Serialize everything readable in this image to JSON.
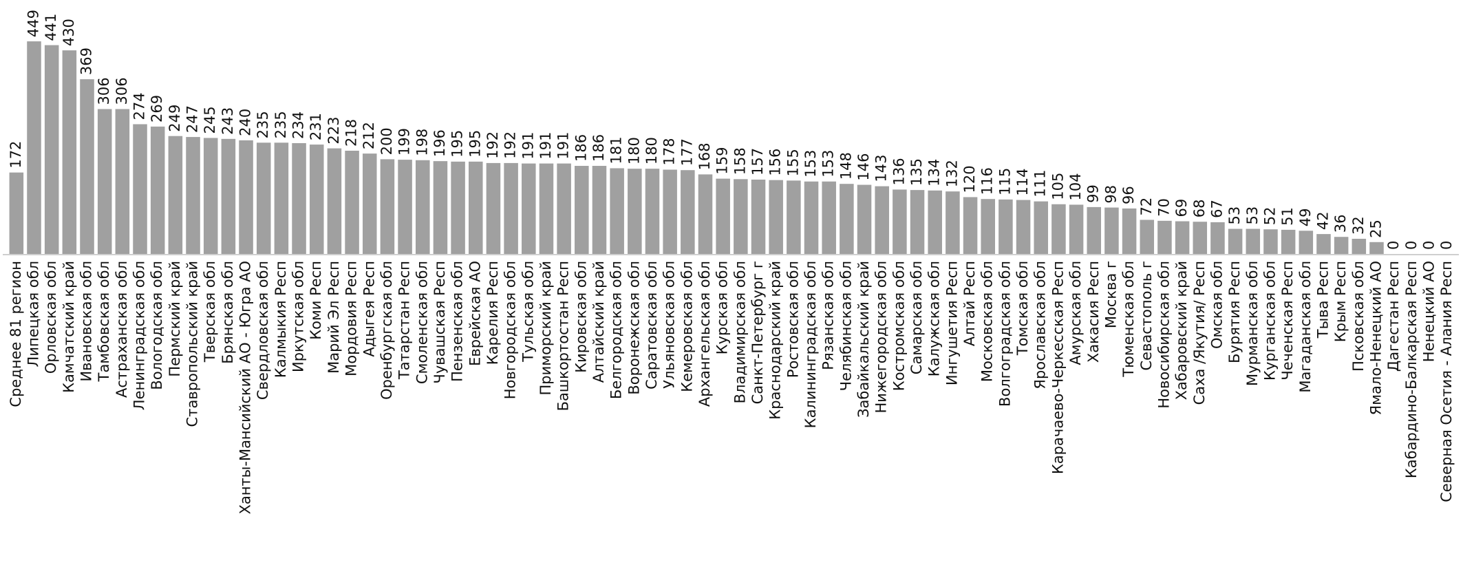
{
  "chart_data": {
    "type": "bar",
    "color": "#a0a0a0",
    "categories": [
      "Среднее 81 регион",
      "Липецкая обл",
      "Орловская обл",
      "Камчатский край",
      "Ивановская обл",
      "Тамбовская обл",
      "Астраханская обл",
      "Ленинградская обл",
      "Вологодская обл",
      "Пермский край",
      "Ставропольский край",
      "Тверская обл",
      "Брянская обл",
      "Ханты-Мансийский АО - Югра АО",
      "Свердловская обл",
      "Калмыкия Респ",
      "Иркутская обл",
      "Коми Респ",
      "Марий Эл Респ",
      "Мордовия Респ",
      "Адыгея Респ",
      "Оренбургская обл",
      "Татарстан Респ",
      "Смоленская обл",
      "Чувашская Респ",
      "Пензенская обл",
      "Еврейская АО",
      "Карелия Респ",
      "Новгородская обл",
      "Тульская обл",
      "Приморский край",
      "Башкортостан Респ",
      "Кировская обл",
      "Алтайский край",
      "Белгородская обл",
      "Воронежская обл",
      "Саратовская обл",
      "Ульяновская обл",
      "Кемеровская обл",
      "Архангельская обл",
      "Курская обл",
      "Владимирская обл",
      "Санкт-Петербург г",
      "Краснодарский край",
      "Ростовская обл",
      "Калининградская обл",
      "Рязанская обл",
      "Челябинская обл",
      "Забайкальский край",
      "Нижегородская обл",
      "Костромская обл",
      "Самарская обл",
      "Калужская обл",
      "Ингушетия Респ",
      "Алтай Респ",
      "Московская обл",
      "Волгоградская обл",
      "Томская обл",
      "Ярославская обл",
      "Карачаево-Черкесская Респ",
      "Амурская обл",
      "Хакасия Респ",
      "Москва г",
      "Тюменская обл",
      "Севастополь г",
      "Новосибирская обл",
      "Хабаровский край",
      "Саха /Якутия/ Респ",
      "Омская обл",
      "Бурятия Респ",
      "Мурманская обл",
      "Курганская обл",
      "Чеченская Респ",
      "Магаданская обл",
      "Тыва Респ",
      "Крым Респ",
      "Псковская обл",
      "Ямало-Ненецкий АО",
      "Дагестан Респ",
      "Кабардино-Балкарская Респ",
      "Ненецкий АО",
      "Северная Осетия - Алания Респ"
    ],
    "values": [
      172,
      449,
      441,
      430,
      369,
      306,
      306,
      274,
      269,
      249,
      247,
      245,
      243,
      240,
      235,
      235,
      234,
      231,
      223,
      218,
      212,
      200,
      199,
      198,
      196,
      195,
      195,
      192,
      192,
      191,
      191,
      191,
      186,
      186,
      181,
      180,
      180,
      178,
      177,
      168,
      159,
      158,
      157,
      156,
      155,
      153,
      153,
      148,
      146,
      143,
      136,
      135,
      134,
      132,
      120,
      116,
      115,
      114,
      111,
      105,
      104,
      99,
      98,
      96,
      72,
      70,
      69,
      68,
      67,
      53,
      53,
      52,
      51,
      49,
      42,
      36,
      32,
      25,
      0,
      0,
      0,
      0
    ]
  }
}
